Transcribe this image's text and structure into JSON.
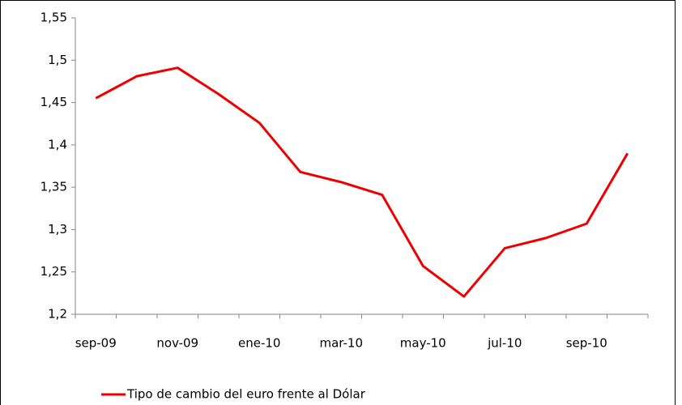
{
  "chart_data": {
    "type": "line",
    "categories": [
      "sep-09",
      null,
      "nov-09",
      null,
      "ene-10",
      null,
      "mar-10",
      null,
      "may-10",
      null,
      "jul-10",
      null,
      "sep-10",
      null
    ],
    "series": [
      {
        "name": "Tipo de cambio del euro frente al Dólar",
        "color": "#ee0000",
        "values": [
          1.455,
          1.481,
          1.491,
          1.46,
          1.426,
          1.368,
          1.356,
          1.341,
          1.257,
          1.221,
          1.278,
          1.29,
          1.307,
          1.39
        ]
      }
    ],
    "ylim": [
      1.2,
      1.55
    ],
    "yticks": [
      {
        "value": 1.2,
        "label": "1,2"
      },
      {
        "value": 1.25,
        "label": "1,25"
      },
      {
        "value": 1.3,
        "label": "1,3"
      },
      {
        "value": 1.35,
        "label": "1,35"
      },
      {
        "value": 1.4,
        "label": "1,4"
      },
      {
        "value": 1.45,
        "label": "1,45"
      },
      {
        "value": 1.5,
        "label": "1,5"
      },
      {
        "value": 1.55,
        "label": "1,55"
      }
    ],
    "grid": false,
    "legend": "bottom-left"
  }
}
